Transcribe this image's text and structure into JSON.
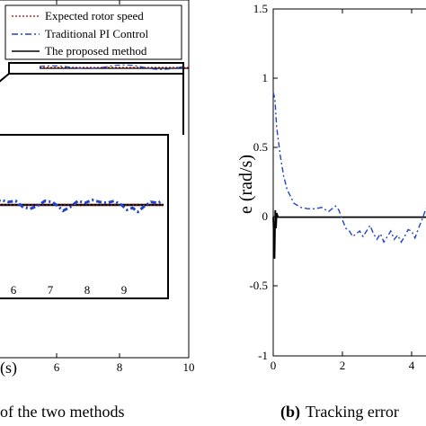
{
  "chart_data": [
    {
      "type": "line",
      "legend": {
        "position": "top-left",
        "entries": [
          "Expected rotor speed",
          "Traditional PI Control",
          "The proposed method"
        ]
      },
      "xlabel": "(s)",
      "x_ticks": [
        "6",
        "8",
        "10"
      ],
      "xlim": [
        4.1,
        10
      ],
      "caption": "of the two methods",
      "inset": {
        "x_ticks": [
          "6",
          "7",
          "8",
          "9"
        ],
        "xlim": [
          5.35,
          9.95
        ]
      },
      "series": [
        {
          "name": "Expected rotor speed",
          "x": [
            4.1,
            10
          ],
          "y": [
            0,
            0
          ]
        },
        {
          "name": "The proposed method",
          "x": [
            4.1,
            10
          ],
          "y": [
            0,
            0
          ]
        },
        {
          "name": "Traditional PI Control",
          "x": [
            5.35,
            5.5,
            5.7,
            5.9,
            6.1,
            6.3,
            6.5,
            6.7,
            6.9,
            7.05,
            7.2,
            7.4,
            7.6,
            7.8,
            8.0,
            8.2,
            8.4,
            8.6,
            8.8,
            8.95,
            9.1,
            9.25,
            9.4,
            9.6,
            9.8,
            9.9
          ],
          "y": [
            0.06,
            0.1,
            0.06,
            0.08,
            -0.04,
            -0.08,
            -0.02,
            0.08,
            0.06,
            -0.02,
            -0.12,
            -0.04,
            0.08,
            0.04,
            0.1,
            0.06,
            0.04,
            0.08,
            0.0,
            -0.1,
            -0.06,
            -0.14,
            -0.04,
            0.06,
            0.04,
            0.08
          ]
        }
      ]
    },
    {
      "type": "line",
      "ylabel": "e (rad/s)",
      "y_ticks": [
        "-1",
        "-0.5",
        "0",
        "0.5",
        "1",
        "1.5"
      ],
      "ylim": [
        -1,
        1.5
      ],
      "x_ticks": [
        "0",
        "2",
        "4"
      ],
      "xlim": [
        0,
        4.6
      ],
      "caption_bold": "(b)",
      "caption": "Tracking error",
      "series": [
        {
          "name": "Traditional PI Control",
          "x": [
            0.0,
            0.05,
            0.1,
            0.2,
            0.3,
            0.4,
            0.5,
            0.6,
            0.8,
            1.0,
            1.2,
            1.4,
            1.6,
            1.8,
            1.9,
            2.0,
            2.1,
            2.2,
            2.3,
            2.4,
            2.5,
            2.6,
            2.7,
            2.8,
            2.9,
            3.0,
            3.1,
            3.2,
            3.3,
            3.4,
            3.5,
            3.6,
            3.7,
            3.8,
            3.9,
            4.0,
            4.1,
            4.2,
            4.3,
            4.4,
            4.5,
            4.6
          ],
          "y": [
            0.9,
            0.85,
            0.65,
            0.45,
            0.3,
            0.2,
            0.15,
            0.1,
            0.07,
            0.06,
            0.06,
            0.07,
            0.04,
            0.08,
            0.05,
            -0.02,
            -0.08,
            -0.1,
            -0.14,
            -0.12,
            -0.1,
            -0.14,
            -0.1,
            -0.06,
            -0.12,
            -0.16,
            -0.12,
            -0.18,
            -0.14,
            -0.1,
            -0.16,
            -0.13,
            -0.18,
            -0.14,
            -0.09,
            -0.1,
            -0.15,
            -0.08,
            -0.02,
            0.05,
            0.1,
            0.12
          ]
        },
        {
          "name": "The proposed method",
          "x": [
            0.0,
            0.04,
            0.06,
            0.08,
            0.1,
            0.14,
            0.3,
            4.6
          ],
          "y": [
            0.0,
            -0.3,
            0.05,
            -0.08,
            0.03,
            0.0,
            0.0,
            0.0
          ]
        }
      ]
    }
  ],
  "colors": {
    "expected": "#cc2020",
    "traditional": "#2244cc",
    "proposed": "#000000"
  }
}
